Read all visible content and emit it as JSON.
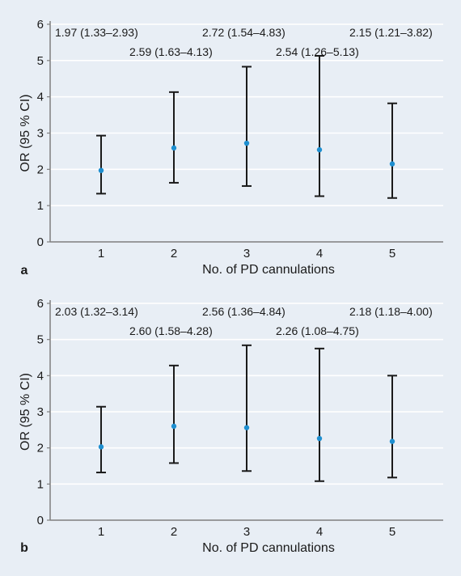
{
  "colors": {
    "figure_background": "#e8eef5",
    "plot_background": "#e8eef5",
    "gridline": "#ffffff",
    "axis": "#7f7f7f",
    "error_bar": "#1a1a1a",
    "point": "#1e8fd0"
  },
  "chart_data": [
    {
      "type": "scatter",
      "panel_label": "a",
      "xlabel": "No. of PD cannulations",
      "ylabel": "OR (95 % CI)",
      "x": [
        1,
        2,
        3,
        4,
        5
      ],
      "x_tick_labels": [
        "1",
        "2",
        "3",
        "4",
        "5"
      ],
      "y": [
        1.97,
        2.59,
        2.72,
        2.54,
        2.15
      ],
      "ci_low": [
        1.33,
        1.63,
        1.54,
        1.26,
        1.21
      ],
      "ci_high": [
        2.93,
        4.13,
        4.83,
        5.13,
        3.82
      ],
      "annotations": [
        "1.97 (1.33–2.93)",
        "2.59 (1.63–4.13)",
        "2.72 (1.54–4.83)",
        "2.54 (1.26–5.13)",
        "2.15 (1.21–3.82)"
      ],
      "y_ticks": [
        0,
        1,
        2,
        3,
        4,
        5,
        6
      ],
      "ylim": [
        0,
        6
      ],
      "xlim": [
        0.3,
        5.7
      ],
      "grid": "horizontal"
    },
    {
      "type": "scatter",
      "panel_label": "b",
      "xlabel": "No. of PD cannulations",
      "ylabel": "OR (95 % CI)",
      "x": [
        1,
        2,
        3,
        4,
        5
      ],
      "x_tick_labels": [
        "1",
        "2",
        "3",
        "4",
        "5"
      ],
      "y": [
        2.03,
        2.6,
        2.56,
        2.26,
        2.18
      ],
      "ci_low": [
        1.32,
        1.58,
        1.36,
        1.08,
        1.18
      ],
      "ci_high": [
        3.14,
        4.28,
        4.84,
        4.75,
        4.0
      ],
      "annotations": [
        "2.03 (1.32–3.14)",
        "2.60 (1.58–4.28)",
        "2.56 (1.36–4.84)",
        "2.26 (1.08–4.75)",
        "2.18 (1.18–4.00)"
      ],
      "y_ticks": [
        0,
        1,
        2,
        3,
        4,
        5,
        6
      ],
      "ylim": [
        0,
        6
      ],
      "xlim": [
        0.3,
        5.7
      ],
      "grid": "horizontal"
    }
  ]
}
